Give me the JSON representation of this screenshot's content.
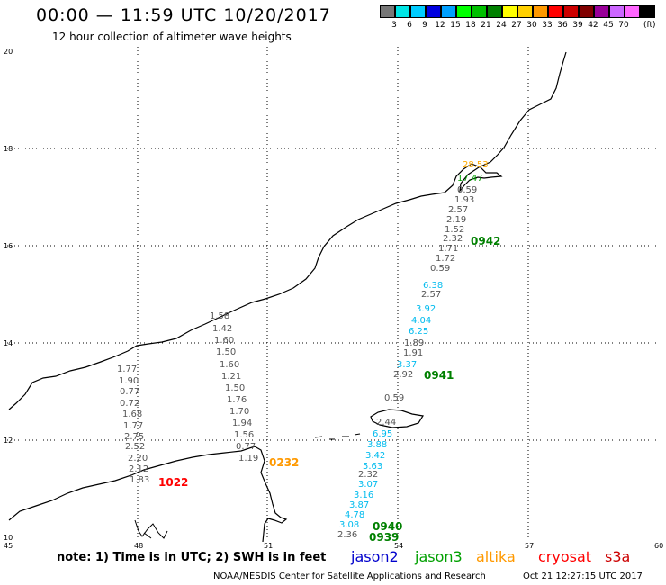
{
  "header": {
    "title": "00:00 — 11:59 UTC 10/20/2017",
    "subtitle": "12 hour collection of altimeter wave heights"
  },
  "legend": {
    "unit": "(ft)",
    "items": [
      {
        "label": "",
        "color": "#777777"
      },
      {
        "label": "3",
        "color": "#00e5e5"
      },
      {
        "label": "6",
        "color": "#00ccff"
      },
      {
        "label": "9",
        "color": "#0000e0"
      },
      {
        "label": "12",
        "color": "#00a0ff"
      },
      {
        "label": "15",
        "color": "#00ff00"
      },
      {
        "label": "18",
        "color": "#00c000"
      },
      {
        "label": "21",
        "color": "#008000"
      },
      {
        "label": "24",
        "color": "#ffff00"
      },
      {
        "label": "27",
        "color": "#ffd000"
      },
      {
        "label": "30",
        "color": "#ff9900"
      },
      {
        "label": "33",
        "color": "#ff0000"
      },
      {
        "label": "36",
        "color": "#cc0000"
      },
      {
        "label": "39",
        "color": "#800000"
      },
      {
        "label": "42",
        "color": "#990099"
      },
      {
        "label": "45",
        "color": "#cc66ff"
      },
      {
        "label": "70",
        "color": "#ff66ff"
      },
      {
        "label": "",
        "color": "#000000"
      }
    ]
  },
  "axes": {
    "y_ticks": [
      "20",
      "18",
      "16",
      "14",
      "12",
      "10"
    ],
    "x_ticks": [
      "45",
      "48",
      "51",
      "54",
      "57",
      "60"
    ]
  },
  "labels": {
    "gray": [
      "1.58",
      "1.42",
      "1.60",
      "1.50",
      "1.60",
      "1.21",
      "1.50",
      "1.76",
      "1.70",
      "1.94",
      "1.56",
      "0.77",
      "1.19",
      "1.77",
      "1.90",
      "0.77",
      "0.72",
      "1.68",
      "1.77",
      "2.75",
      "2.52",
      "2.20",
      "2.12",
      "1.83",
      "0.59",
      "1.93",
      "2.57",
      "2.19",
      "1.52",
      "2.32",
      "1.71",
      "1.72",
      "0.59",
      "2.57",
      "1.89",
      "1.91",
      "2.92",
      "0.59",
      "2.44",
      "2.32",
      "2.36"
    ],
    "cyan": [
      "6.38",
      "3.92",
      "4.04",
      "6.25",
      "3.37",
      "6.95",
      "3.88",
      "3.42",
      "5.63",
      "3.07",
      "3.16",
      "3.87",
      "4.78",
      "3.08"
    ],
    "green": [
      "17.47"
    ],
    "orange": [
      "28.53"
    ],
    "pass_times": [
      "0942",
      "0941",
      "0940",
      "0939",
      "0232",
      "1022"
    ]
  },
  "footer": {
    "note": "note: 1) Time is in UTC; 2) SWH is in feet",
    "satellites": [
      {
        "name": "jason2",
        "color": "#0000cc"
      },
      {
        "name": "jason3",
        "color": "#00a000"
      },
      {
        "name": "altika",
        "color": "#ff9900"
      },
      {
        "name": "cryosat",
        "color": "#ff0000"
      },
      {
        "name": "s3a",
        "color": "#cc0000"
      }
    ],
    "credit": "NOAA/NESDIS Center for Satellite Applications and Research",
    "timestamp": "Oct 21 12:27:15 UTC 2017"
  }
}
